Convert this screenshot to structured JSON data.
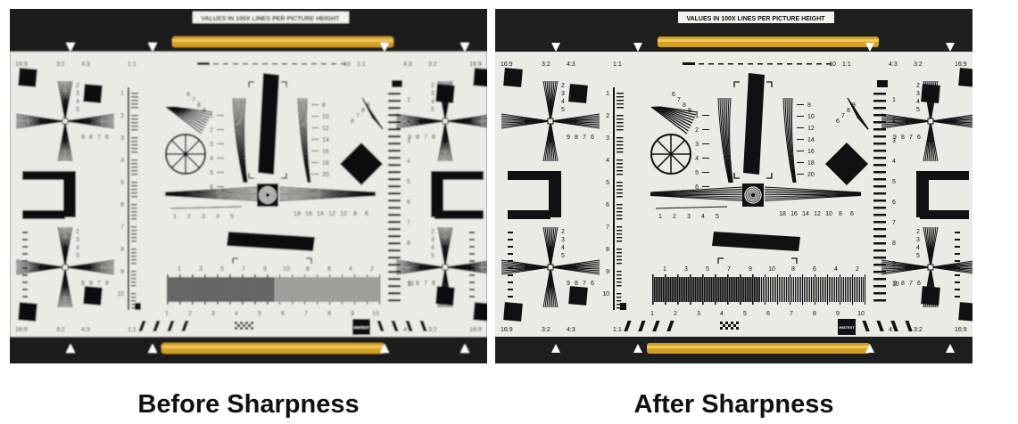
{
  "before": {
    "caption": "Before Sharpness",
    "blur": 0.9
  },
  "after": {
    "caption": "After Sharpness",
    "blur": 0
  },
  "chart": {
    "header": "VALUES IN 100X LINES PER PICTURE HEIGHT",
    "corner_ratios": [
      "16:9",
      "3:2",
      "4:3",
      "1:1"
    ],
    "scale_bar_end": "10",
    "left_scale": [
      "1",
      "2",
      "3",
      "4",
      "5",
      "6",
      "7",
      "8",
      "9",
      "10"
    ],
    "hyperbolic_left": [
      "1",
      "2",
      "3",
      "4",
      "5",
      "6"
    ],
    "hyperbolic_right": [
      "8",
      "10",
      "12",
      "14",
      "16",
      "18",
      "20"
    ],
    "fan_labels": [
      "6",
      "7",
      "8",
      "9"
    ],
    "horizontal_wedge": [
      "1",
      "2",
      "3",
      "4",
      "5"
    ],
    "horizontal_wedge_right": [
      "18",
      "16",
      "14",
      "12",
      "10",
      "8",
      "6"
    ],
    "bottom_bars_top": [
      "1",
      "3",
      "5",
      "7",
      "9",
      "10",
      "8",
      "6",
      "4",
      "2"
    ],
    "bottom_bars_bottom": [
      "1",
      "2",
      "3",
      "4",
      "5",
      "6",
      "7",
      "8",
      "9",
      "10"
    ],
    "cross_top": [
      "2",
      "3",
      "4",
      "5"
    ],
    "cross_mid": [
      "9",
      "8",
      "7",
      "6"
    ],
    "cross_left": [
      "2",
      "3",
      "4",
      "5"
    ],
    "right_scale": [
      "1",
      "2",
      "3",
      "4",
      "5",
      "6",
      "7",
      "8",
      "9",
      "10"
    ],
    "logo": "IMATEST"
  }
}
